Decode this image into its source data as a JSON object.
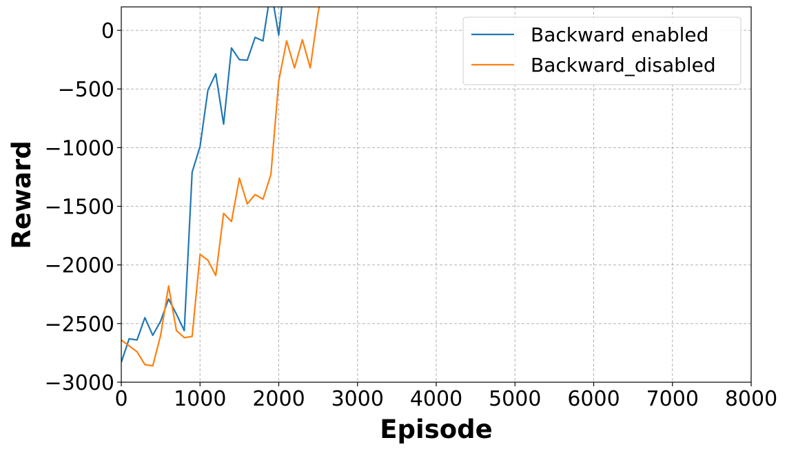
{
  "chart_data": {
    "type": "line",
    "xlabel": "Episode",
    "ylabel": "Reward",
    "xlim": [
      0,
      8000
    ],
    "ylim": [
      -3000,
      200
    ],
    "xticks": [
      0,
      1000,
      2000,
      3000,
      4000,
      5000,
      6000,
      7000,
      8000
    ],
    "yticks": [
      -3000,
      -2500,
      -2000,
      -1500,
      -1000,
      -500,
      0
    ],
    "x_tick_labels": [
      "0",
      "1000",
      "2000",
      "3000",
      "4000",
      "5000",
      "6000",
      "7000",
      "8000"
    ],
    "y_tick_labels": [
      "−3000",
      "−2500",
      "−2000",
      "−1500",
      "−1000",
      "−500",
      "0"
    ],
    "grid": true,
    "legend_position": "top-right",
    "series": [
      {
        "name": "Backward enabled",
        "color": "#1f77b4",
        "x": [
          0,
          100,
          200,
          300,
          400,
          500,
          600,
          700,
          800,
          900,
          1000,
          1100,
          1200,
          1300,
          1400,
          1500,
          1600,
          1700,
          1800,
          1900,
          2000,
          2100
        ],
        "values": [
          -2830,
          -2630,
          -2640,
          -2450,
          -2600,
          -2480,
          -2290,
          -2420,
          -2560,
          -1210,
          -990,
          -510,
          -370,
          -800,
          -150,
          -250,
          -255,
          -60,
          -90,
          350,
          -40,
          600
        ]
      },
      {
        "name": "Backward_disabled",
        "color": "#ff7f0e",
        "x": [
          0,
          100,
          200,
          300,
          400,
          500,
          600,
          700,
          800,
          900,
          1000,
          1100,
          1200,
          1300,
          1400,
          1500,
          1600,
          1700,
          1800,
          1900,
          2000,
          2100,
          2200,
          2300,
          2400,
          2500,
          2600
        ],
        "values": [
          -2640,
          -2690,
          -2740,
          -2850,
          -2860,
          -2600,
          -2180,
          -2560,
          -2620,
          -2610,
          -1910,
          -1960,
          -2090,
          -1560,
          -1630,
          -1260,
          -1480,
          -1400,
          -1440,
          -1230,
          -430,
          -90,
          -320,
          -80,
          -320,
          150,
          500
        ]
      }
    ]
  }
}
